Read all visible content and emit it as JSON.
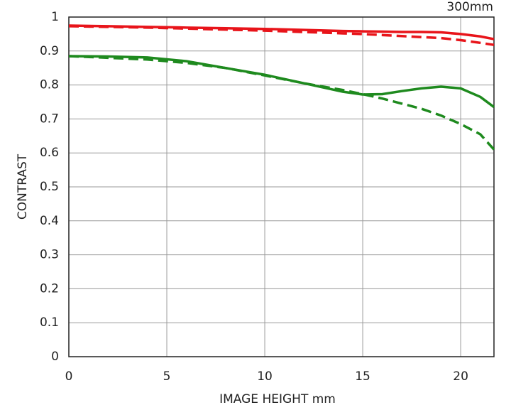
{
  "chart_data": {
    "type": "line",
    "annotation": "300mm",
    "xlabel": "IMAGE HEIGHT   mm",
    "ylabel": "CONTRAST",
    "x": [
      0,
      2,
      4,
      6,
      8,
      10,
      12,
      14,
      15,
      16,
      17,
      18,
      19,
      20,
      21,
      21.7
    ],
    "series": [
      {
        "color": "#e8141a",
        "dashed": false,
        "values": [
          0.975,
          0.973,
          0.971,
          0.969,
          0.967,
          0.965,
          0.962,
          0.959,
          0.958,
          0.957,
          0.956,
          0.956,
          0.955,
          0.95,
          0.943,
          0.935
        ]
      },
      {
        "color": "#e8141a",
        "dashed": true,
        "values": [
          0.973,
          0.971,
          0.969,
          0.966,
          0.963,
          0.96,
          0.956,
          0.952,
          0.95,
          0.947,
          0.944,
          0.941,
          0.938,
          0.932,
          0.924,
          0.918
        ]
      },
      {
        "color": "#1e8a1e",
        "dashed": false,
        "values": [
          0.885,
          0.884,
          0.881,
          0.87,
          0.85,
          0.83,
          0.805,
          0.78,
          0.772,
          0.773,
          0.782,
          0.79,
          0.795,
          0.79,
          0.765,
          0.735
        ]
      },
      {
        "color": "#1e8a1e",
        "dashed": true,
        "values": [
          0.885,
          0.88,
          0.875,
          0.865,
          0.85,
          0.828,
          0.805,
          0.785,
          0.773,
          0.76,
          0.745,
          0.73,
          0.71,
          0.685,
          0.655,
          0.61
        ]
      }
    ],
    "xlim": [
      0,
      21.7
    ],
    "xticks": [
      0,
      5,
      10,
      15,
      20
    ],
    "ylim": [
      0,
      1
    ],
    "yticks": [
      0,
      0.1,
      0.2,
      0.3,
      0.4,
      0.5,
      0.6,
      0.7,
      0.8,
      0.9,
      1
    ],
    "grid": true
  }
}
